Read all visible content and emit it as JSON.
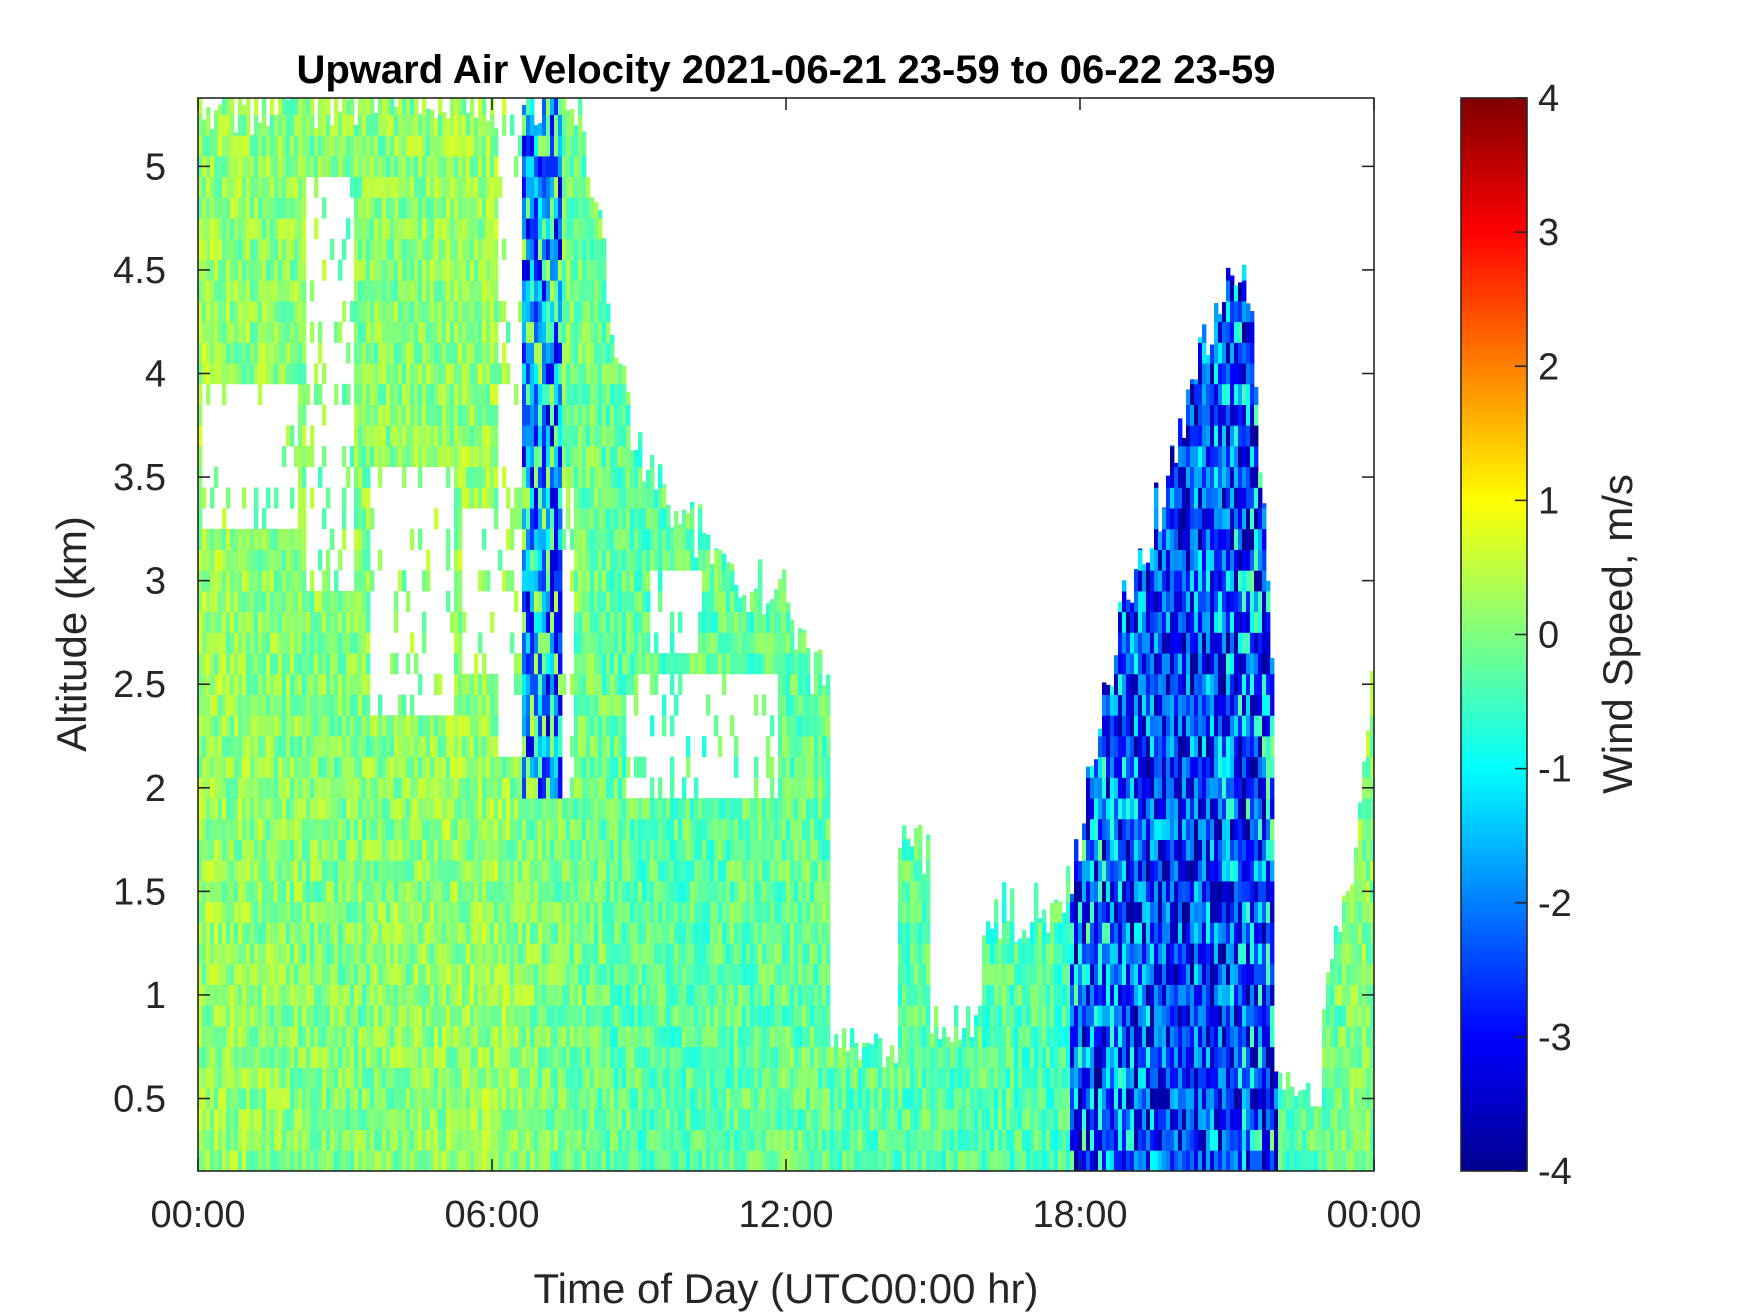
{
  "chart_data": {
    "type": "heatmap",
    "title": "Upward Air Velocity 2021-06-21 23-59 to 06-22 23-59",
    "xlabel": "Time of Day (UTC00:00 hr)",
    "ylabel": "Altitude (km)",
    "xlim": [
      0,
      24
    ],
    "ylim": [
      0.15,
      5.33
    ],
    "x_ticks": [
      {
        "value": 0,
        "label": "00:00"
      },
      {
        "value": 6,
        "label": "06:00"
      },
      {
        "value": 12,
        "label": "12:00"
      },
      {
        "value": 18,
        "label": "18:00"
      },
      {
        "value": 24,
        "label": "00:00"
      }
    ],
    "y_ticks": [
      {
        "value": 0.5,
        "label": "0.5"
      },
      {
        "value": 1,
        "label": "1"
      },
      {
        "value": 1.5,
        "label": "1.5"
      },
      {
        "value": 2,
        "label": "2"
      },
      {
        "value": 2.5,
        "label": "2.5"
      },
      {
        "value": 3,
        "label": "3"
      },
      {
        "value": 3.5,
        "label": "3.5"
      },
      {
        "value": 4,
        "label": "4"
      },
      {
        "value": 4.5,
        "label": "4.5"
      },
      {
        "value": 5,
        "label": "5"
      }
    ],
    "colorbar": {
      "label": "Wind Speed, m/s",
      "range": [
        -4,
        4
      ],
      "ticks": [
        {
          "value": 4,
          "label": "4"
        },
        {
          "value": 3,
          "label": "3"
        },
        {
          "value": 2,
          "label": "2"
        },
        {
          "value": 1,
          "label": "1"
        },
        {
          "value": 0,
          "label": "0"
        },
        {
          "value": -1,
          "label": "-1"
        },
        {
          "value": -2,
          "label": "-2"
        },
        {
          "value": -3,
          "label": "-3"
        },
        {
          "value": -4,
          "label": "-4"
        }
      ],
      "colormap": "jet"
    },
    "coverage_top_km": [
      {
        "t": 0.0,
        "top": 5.3
      },
      {
        "t": 1.0,
        "top": 5.3
      },
      {
        "t": 2.0,
        "top": 5.3
      },
      {
        "t": 3.0,
        "top": 5.33
      },
      {
        "t": 4.0,
        "top": 5.33
      },
      {
        "t": 5.0,
        "top": 5.33
      },
      {
        "t": 6.0,
        "top": 5.33
      },
      {
        "t": 7.0,
        "top": 5.33
      },
      {
        "t": 7.8,
        "top": 5.33
      },
      {
        "t": 8.5,
        "top": 4.2
      },
      {
        "t": 9.0,
        "top": 3.6
      },
      {
        "t": 10.0,
        "top": 3.3
      },
      {
        "t": 11.0,
        "top": 3.0
      },
      {
        "t": 12.0,
        "top": 2.9
      },
      {
        "t": 12.5,
        "top": 2.6
      },
      {
        "t": 13.0,
        "top": 2.4
      },
      {
        "t": 13.5,
        "top": 2.1
      },
      {
        "t": 14.0,
        "top": 1.9
      },
      {
        "t": 15.0,
        "top": 1.6
      },
      {
        "t": 16.0,
        "top": 1.4
      },
      {
        "t": 17.0,
        "top": 1.4
      },
      {
        "t": 17.8,
        "top": 1.5
      },
      {
        "t": 18.5,
        "top": 2.4
      },
      {
        "t": 19.0,
        "top": 3.0
      },
      {
        "t": 19.5,
        "top": 3.3
      },
      {
        "t": 20.0,
        "top": 3.6
      },
      {
        "t": 20.5,
        "top": 4.1
      },
      {
        "t": 21.0,
        "top": 4.4
      },
      {
        "t": 21.5,
        "top": 4.4
      },
      {
        "t": 22.0,
        "top": 2.2
      },
      {
        "t": 22.5,
        "top": 1.2
      },
      {
        "t": 23.0,
        "top": 1.0
      },
      {
        "t": 23.5,
        "top": 1.5
      },
      {
        "t": 24.0,
        "top": 2.5
      }
    ],
    "low_gaps": [
      {
        "t0": 12.9,
        "t1": 14.3,
        "bottom": 0.75
      },
      {
        "t0": 14.9,
        "t1": 16.0,
        "bottom": 0.85
      },
      {
        "t0": 22.0,
        "t1": 22.9,
        "bottom": 0.55
      }
    ],
    "upper_gaps": [
      {
        "t0": 0.1,
        "t1": 2.0,
        "bottom": 3.3,
        "top": 4.0
      },
      {
        "t0": 2.2,
        "t1": 3.2,
        "bottom": 3.0,
        "top": 4.9
      },
      {
        "t0": 3.5,
        "t1": 5.2,
        "bottom": 2.4,
        "top": 3.6
      },
      {
        "t0": 5.4,
        "t1": 6.1,
        "bottom": 2.6,
        "top": 3.4
      },
      {
        "t0": 6.1,
        "t1": 6.6,
        "bottom": 2.2,
        "top": 5.33
      },
      {
        "t0": 7.4,
        "t1": 7.7,
        "bottom": 2.0,
        "top": 3.5
      },
      {
        "t0": 8.7,
        "t1": 11.8,
        "bottom": 2.0,
        "top": 2.6
      },
      {
        "t0": 9.2,
        "t1": 10.3,
        "bottom": 2.7,
        "top": 3.1
      }
    ],
    "convective_band": {
      "t0": 17.8,
      "t1": 22.0,
      "value_range": [
        -4.0,
        -1.6
      ]
    },
    "updraft_column": {
      "t0": 6.6,
      "t1": 7.4,
      "value_range": [
        -3.5,
        -1.0
      ]
    },
    "mean_values_ms": [
      {
        "t": 0.0,
        "v": 0.2
      },
      {
        "t": 3.0,
        "v": 0.0
      },
      {
        "t": 6.0,
        "v": 0.2
      },
      {
        "t": 9.0,
        "v": -0.3
      },
      {
        "t": 12.0,
        "v": -0.2
      },
      {
        "t": 15.0,
        "v": -0.3
      },
      {
        "t": 18.0,
        "v": -0.4
      },
      {
        "t": 20.0,
        "v": -1.8
      },
      {
        "t": 22.0,
        "v": -0.4
      },
      {
        "t": 24.0,
        "v": 0.1
      }
    ]
  }
}
